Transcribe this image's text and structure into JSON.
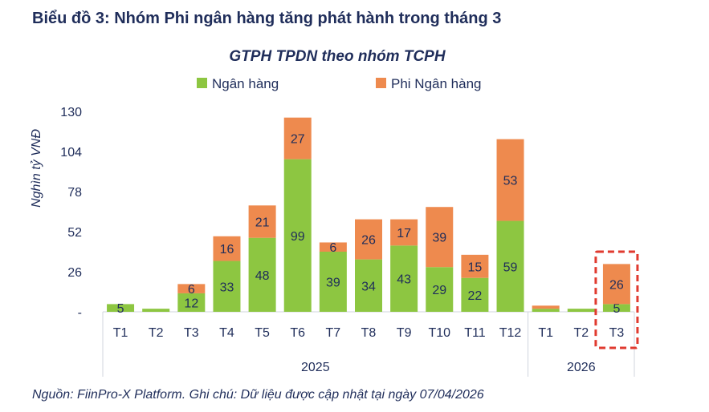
{
  "page_title": "Biểu đồ 3: Nhóm Phi ngân hàng tăng phát hành trong tháng 3",
  "footer": "Nguồn: FiinPro-X Platform. Ghi chú: Dữ liệu được cập nhật tại ngày 07/04/2026",
  "chart_data": {
    "type": "bar",
    "stacked": true,
    "title": "GTPH TPDN theo nhóm TCPH",
    "ylabel": "Nghìn tỷ VNĐ",
    "xlabel": "",
    "ylim": [
      0,
      130
    ],
    "yticks": [
      0,
      26,
      52,
      78,
      104,
      130
    ],
    "ytick_labels": [
      "-",
      "26",
      "52",
      "78",
      "104",
      "130"
    ],
    "categories": [
      "T1",
      "T2",
      "T3",
      "T4",
      "T5",
      "T6",
      "T7",
      "T8",
      "T9",
      "T10",
      "T11",
      "T12",
      "T1",
      "T2",
      "T3"
    ],
    "groups": [
      {
        "label": "2025",
        "count": 12
      },
      {
        "label": "2026",
        "count": 3
      }
    ],
    "legend_position": "top",
    "series": [
      {
        "name": "Ngân hàng",
        "color": "#8dc641",
        "values": [
          5,
          2,
          12,
          33,
          48,
          99,
          39,
          34,
          43,
          29,
          22,
          59,
          2,
          2,
          5
        ],
        "labels": [
          "5",
          "",
          "12",
          "33",
          "48",
          "99",
          "39",
          "34",
          "43",
          "29",
          "22",
          "59",
          "",
          "",
          "5"
        ]
      },
      {
        "name": "Phi Ngân hàng",
        "color": "#ee8a4e",
        "values": [
          0,
          0,
          6,
          16,
          21,
          27,
          6,
          26,
          17,
          39,
          15,
          53,
          2,
          0,
          26
        ],
        "labels": [
          "",
          "",
          "6",
          "16",
          "21",
          "27",
          "6",
          "26",
          "17",
          "39",
          "15",
          "53",
          "",
          "",
          "26"
        ]
      }
    ],
    "highlight_category_index": 14,
    "highlight_color": "#e03a2f"
  }
}
